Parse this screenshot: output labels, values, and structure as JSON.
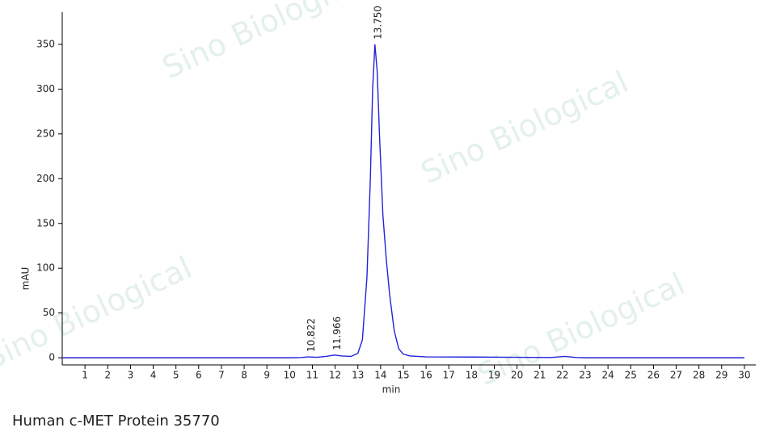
{
  "chart_data": {
    "type": "line",
    "caption": "Human c-MET Protein 35770",
    "x_label": "min",
    "y_label": "mAU",
    "watermark": "Sino Biological",
    "x": [
      0,
      1,
      2,
      3,
      4,
      5,
      6,
      7,
      8,
      9,
      10,
      10.5,
      10.822,
      11.2,
      11.6,
      11.966,
      12.3,
      12.7,
      13.0,
      13.2,
      13.4,
      13.55,
      13.65,
      13.75,
      13.85,
      13.95,
      14.1,
      14.25,
      14.4,
      14.6,
      14.8,
      15.0,
      15.3,
      16,
      18,
      20,
      21.5,
      22.1,
      22.6,
      23,
      25,
      27,
      30
    ],
    "series": [
      {
        "name": "mAU",
        "color": "#2323d9",
        "values": [
          0,
          0,
          0,
          0,
          0,
          0,
          0,
          0,
          0,
          0,
          0,
          0.3,
          1,
          0.5,
          1.5,
          3,
          2,
          1.5,
          5,
          20,
          90,
          200,
          300,
          350,
          320,
          250,
          160,
          110,
          70,
          30,
          10,
          4,
          2,
          1,
          0.8,
          0.5,
          0.3,
          1.5,
          0.3,
          0,
          0,
          0,
          0
        ]
      }
    ],
    "peak_labels": [
      10.822,
      11.966,
      {
        "value": 13.75,
        "label": "13.750"
      }
    ],
    "xlim": [
      0,
      30.5
    ],
    "ylim": [
      -8,
      386
    ],
    "xticks": [
      1,
      2,
      3,
      4,
      5,
      6,
      7,
      8,
      9,
      10,
      11,
      12,
      13,
      14,
      15,
      16,
      17,
      18,
      19,
      20,
      21,
      22,
      23,
      24,
      25,
      26,
      27,
      28,
      29,
      30
    ],
    "yticks": [
      0,
      50,
      100,
      150,
      200,
      250,
      300,
      350
    ]
  }
}
